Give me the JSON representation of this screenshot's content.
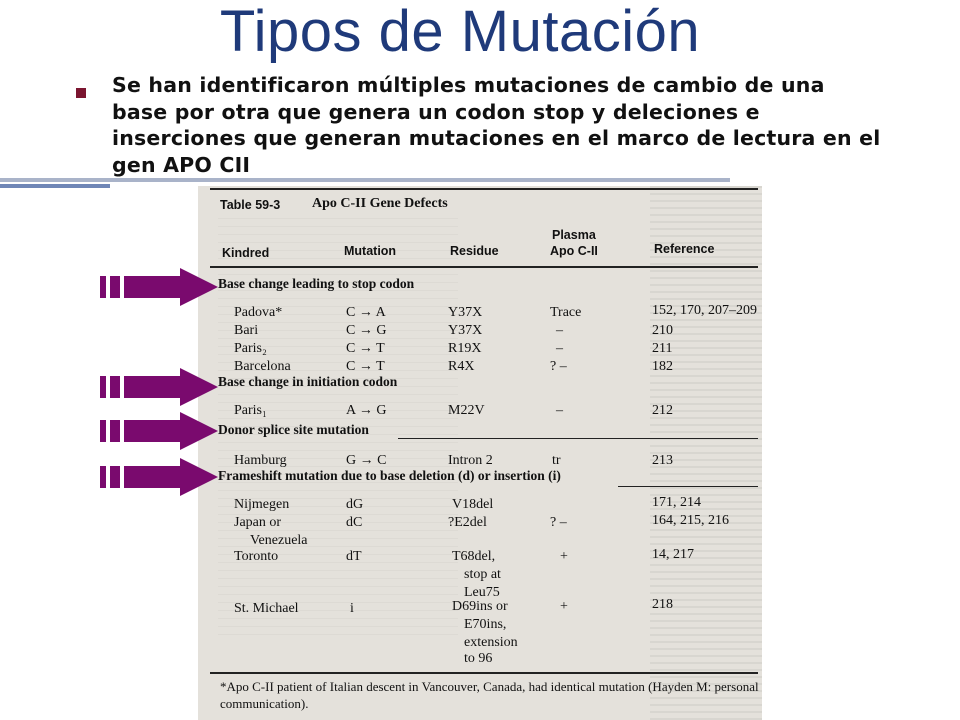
{
  "slide": {
    "title": "Tipos de Mutación",
    "bullet": "Se han  identificaron múltiples mutaciones de cambio de una base por otra que genera un codon stop y deleciones e inserciones que generan mutaciones en el marco de lectura en el gen APO CII"
  },
  "colors": {
    "title": "#1f3a7a",
    "bullet": "#7b1530",
    "arrow": "#7a0a6e",
    "rule_gray": "#a9b3c9",
    "rule_blue": "#6f86b6"
  },
  "table": {
    "label": "Table 59-3",
    "title": "Apo C-II Gene Defects",
    "headers": {
      "kindred": "Kindred",
      "mutation": "Mutation",
      "residue": "Residue",
      "plasma_line1": "Plasma",
      "plasma_line2": "Apo C-II",
      "reference": "Reference"
    },
    "sections": [
      {
        "heading": "Base change leading to stop codon",
        "rows": [
          {
            "kindred": "Padova*",
            "mutation": "C → A",
            "residue": "Y37X",
            "plasma": "Trace",
            "reference": "152, 170, 207–209"
          },
          {
            "kindred": "Bari",
            "mutation": "C → G",
            "residue": "Y37X",
            "plasma": "–",
            "reference": "210"
          },
          {
            "kindred": "Paris₂",
            "mutation": "C → T",
            "residue": "R19X",
            "plasma": "–",
            "reference": "211"
          },
          {
            "kindred": "Barcelona",
            "mutation": "C → T",
            "residue": "R4X",
            "plasma": "? –",
            "reference": "182"
          }
        ]
      },
      {
        "heading": "Base change in initiation codon",
        "rows": [
          {
            "kindred": "Paris₁",
            "mutation": "A → G",
            "residue": "M22V",
            "plasma": "–",
            "reference": "212"
          }
        ]
      },
      {
        "heading": "Donor splice site mutation",
        "rows": [
          {
            "kindred": "Hamburg",
            "mutation": "G → C",
            "residue": "Intron 2",
            "plasma": "tr",
            "reference": "213"
          }
        ]
      },
      {
        "heading": "Frameshift mutation due to base deletion (d) or insertion (i)",
        "rows": [
          {
            "kindred": "Nijmegen",
            "mutation": "dG",
            "residue": "V18del",
            "plasma": "",
            "reference": "171, 214"
          },
          {
            "kindred": "Japan or",
            "mutation": "dC",
            "residue": "?E2del",
            "plasma": "? –",
            "reference": "164, 215, 216"
          },
          {
            "kindred": "Venezuela",
            "mutation": "",
            "residue": "",
            "plasma": "",
            "reference": ""
          },
          {
            "kindred": "Toronto",
            "mutation": "dT",
            "residue": "T68del,",
            "plasma": "+",
            "reference": "14, 217"
          },
          {
            "kindred": "",
            "mutation": "",
            "residue": "stop at",
            "plasma": "",
            "reference": ""
          },
          {
            "kindred": "",
            "mutation": "",
            "residue": "Leu75",
            "plasma": "",
            "reference": ""
          },
          {
            "kindred": "St. Michael",
            "mutation": "i",
            "residue": "D69ins or",
            "plasma": "+",
            "reference": "218"
          },
          {
            "kindred": "",
            "mutation": "",
            "residue": "E70ins,",
            "plasma": "",
            "reference": ""
          },
          {
            "kindred": "",
            "mutation": "",
            "residue": "extension",
            "plasma": "",
            "reference": ""
          },
          {
            "kindred": "",
            "mutation": "",
            "residue": "to 96",
            "plasma": "",
            "reference": ""
          }
        ]
      }
    ],
    "footnote": "*Apo C-II patient of Italian descent in Vancouver, Canada, had identical mutation (Hayden M: personal communication)."
  }
}
